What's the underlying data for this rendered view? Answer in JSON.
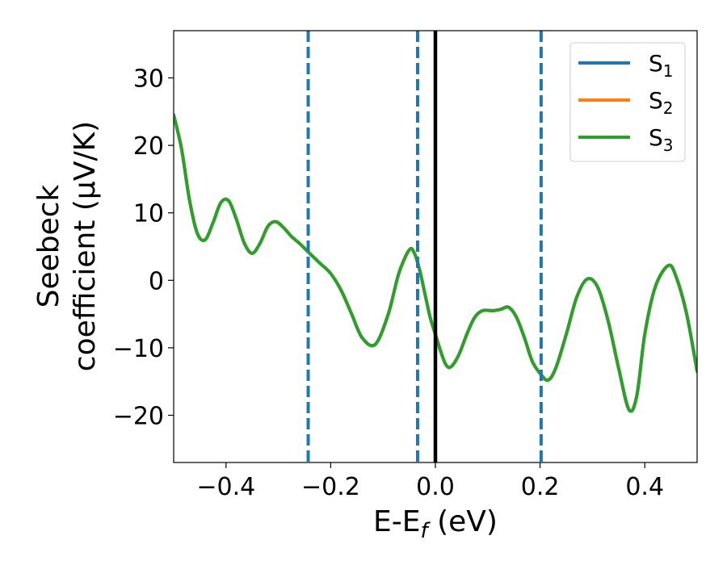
{
  "chart_data": {
    "type": "line",
    "title": "",
    "xlabel": {
      "main": "E-E",
      "sub": "f",
      "suffix": " (eV)"
    },
    "ylabel": {
      "line1": "Seebeck",
      "line2": "coefficient  (μV/K)"
    },
    "xlim": [
      -0.5,
      0.5
    ],
    "ylim": [
      -27,
      37
    ],
    "xticks": [
      -0.4,
      -0.2,
      0.0,
      0.2,
      0.4
    ],
    "xtick_labels": [
      "−0.4",
      "−0.2",
      "0.0",
      "0.2",
      "0.4"
    ],
    "yticks": [
      -20,
      -10,
      0,
      10,
      20,
      30
    ],
    "ytick_labels": [
      "−20",
      "−10",
      "0",
      "10",
      "20",
      "30"
    ],
    "grid": false,
    "legend_position": "top-right",
    "legend": [
      {
        "main": "S",
        "sub": "1",
        "color": "#1f77b4"
      },
      {
        "main": "S",
        "sub": "2",
        "color": "#ff7f0e"
      },
      {
        "main": "S",
        "sub": "3",
        "color": "#2ca02c"
      }
    ],
    "vlines": [
      {
        "x": -0.243,
        "style": "dashed",
        "color": "#1f77b4"
      },
      {
        "x": -0.034,
        "style": "dashed",
        "color": "#1f77b4"
      },
      {
        "x": 0.0,
        "style": "solid",
        "color": "#000000"
      },
      {
        "x": 0.202,
        "style": "dashed",
        "color": "#1f77b4"
      }
    ],
    "series": [
      {
        "color": "#1f77b4",
        "x": [
          -0.5,
          -0.485,
          -0.47,
          -0.455,
          -0.44,
          -0.425,
          -0.41,
          -0.395,
          -0.38,
          -0.365,
          -0.35,
          -0.335,
          -0.32,
          -0.305,
          -0.29,
          -0.275,
          -0.26,
          -0.243,
          -0.22,
          -0.2,
          -0.18,
          -0.16,
          -0.14,
          -0.115,
          -0.09,
          -0.07,
          -0.05,
          -0.04,
          -0.03,
          -0.02,
          -0.01,
          0.0,
          0.01,
          0.02,
          0.03,
          0.045,
          0.06,
          0.075,
          0.09,
          0.11,
          0.125,
          0.14,
          0.155,
          0.17,
          0.185,
          0.2,
          0.215,
          0.23,
          0.25,
          0.27,
          0.29,
          0.31,
          0.33,
          0.35,
          0.37,
          0.385,
          0.4,
          0.42,
          0.445,
          0.46,
          0.48,
          0.5
        ],
        "y": [
          24.5,
          19.5,
          12,
          7,
          6,
          8.5,
          11.5,
          11.8,
          9,
          5.5,
          4,
          5.5,
          8,
          8.7,
          7.8,
          6.5,
          5.5,
          4.2,
          2.5,
          1,
          -1.5,
          -5,
          -8.5,
          -9.5,
          -5,
          1,
          4.5,
          4,
          1.5,
          -2,
          -5.5,
          -8,
          -10.5,
          -12.5,
          -12.8,
          -11,
          -8,
          -5.5,
          -4.5,
          -4.5,
          -4.3,
          -4,
          -5.5,
          -8.5,
          -12,
          -13.8,
          -14.8,
          -13,
          -8,
          -2.5,
          0.2,
          -1,
          -6,
          -13,
          -19.2,
          -17,
          -8,
          -1,
          2.2,
          0.5,
          -5,
          -13.5
        ]
      },
      {
        "color": "#ff7f0e",
        "x": [
          -0.5,
          -0.485,
          -0.47,
          -0.455,
          -0.44,
          -0.425,
          -0.41,
          -0.395,
          -0.38,
          -0.365,
          -0.35,
          -0.335,
          -0.32,
          -0.305,
          -0.29,
          -0.275,
          -0.26,
          -0.243,
          -0.22,
          -0.2,
          -0.18,
          -0.16,
          -0.14,
          -0.115,
          -0.09,
          -0.07,
          -0.05,
          -0.04,
          -0.03,
          -0.02,
          -0.01,
          0.0,
          0.01,
          0.02,
          0.03,
          0.045,
          0.06,
          0.075,
          0.09,
          0.11,
          0.125,
          0.14,
          0.155,
          0.17,
          0.185,
          0.2,
          0.215,
          0.23,
          0.25,
          0.27,
          0.29,
          0.31,
          0.33,
          0.35,
          0.37,
          0.385,
          0.4,
          0.42,
          0.445,
          0.46,
          0.48,
          0.5
        ],
        "y": [
          24.5,
          19.5,
          12,
          7,
          6,
          8.5,
          11.5,
          11.8,
          9,
          5.5,
          4,
          5.5,
          8,
          8.7,
          7.8,
          6.5,
          5.5,
          4.2,
          2.5,
          1,
          -1.5,
          -5,
          -8.5,
          -9.5,
          -5,
          1,
          4.5,
          4,
          1.5,
          -2,
          -5.5,
          -8,
          -10.5,
          -12.5,
          -12.8,
          -11,
          -8,
          -5.5,
          -4.5,
          -4.5,
          -4.3,
          -4,
          -5.5,
          -8.5,
          -12,
          -13.8,
          -14.8,
          -13,
          -8,
          -2.5,
          0.2,
          -1,
          -6,
          -13,
          -19.2,
          -17,
          -8,
          -1,
          2.2,
          0.5,
          -5,
          -13.5
        ]
      },
      {
        "color": "#2ca02c",
        "x": [
          -0.5,
          -0.485,
          -0.47,
          -0.455,
          -0.44,
          -0.425,
          -0.41,
          -0.395,
          -0.38,
          -0.365,
          -0.35,
          -0.335,
          -0.32,
          -0.305,
          -0.29,
          -0.275,
          -0.26,
          -0.243,
          -0.22,
          -0.2,
          -0.18,
          -0.16,
          -0.14,
          -0.115,
          -0.09,
          -0.07,
          -0.05,
          -0.04,
          -0.03,
          -0.02,
          -0.01,
          0.0,
          0.01,
          0.02,
          0.03,
          0.045,
          0.06,
          0.075,
          0.09,
          0.11,
          0.125,
          0.14,
          0.155,
          0.17,
          0.185,
          0.2,
          0.215,
          0.23,
          0.25,
          0.27,
          0.29,
          0.31,
          0.33,
          0.35,
          0.37,
          0.385,
          0.4,
          0.42,
          0.445,
          0.46,
          0.48,
          0.5
        ],
        "y": [
          24.5,
          19.5,
          12,
          7,
          6,
          8.5,
          11.5,
          11.8,
          9,
          5.5,
          4,
          5.5,
          8,
          8.7,
          7.8,
          6.5,
          5.5,
          4.2,
          2.5,
          1,
          -1.5,
          -5,
          -8.5,
          -9.5,
          -5,
          1,
          4.5,
          4,
          1.5,
          -2,
          -5.5,
          -8,
          -10.5,
          -12.5,
          -12.8,
          -11,
          -8,
          -5.5,
          -4.5,
          -4.5,
          -4.3,
          -4,
          -5.5,
          -8.5,
          -12,
          -13.8,
          -14.8,
          -13,
          -8,
          -2.5,
          0.2,
          -1,
          -6,
          -13,
          -19.2,
          -17,
          -8,
          -1,
          2.2,
          0.5,
          -5,
          -13.5
        ]
      }
    ]
  }
}
